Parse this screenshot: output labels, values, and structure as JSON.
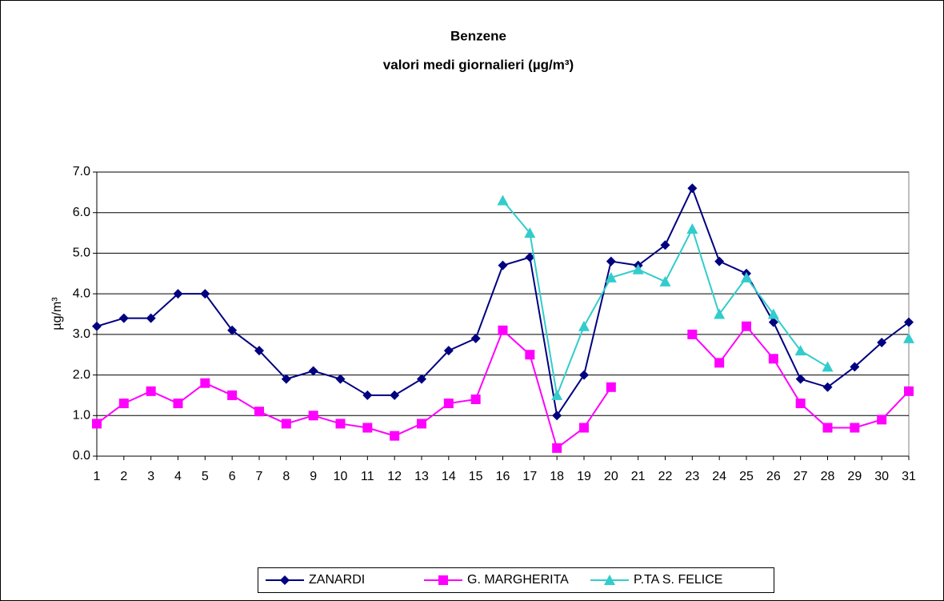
{
  "chart_data": {
    "type": "line",
    "title": "Benzene",
    "subtitle": "valori medi giornalieri (µg/m³)",
    "y_label": "µg/m³",
    "categories": [
      "1",
      "2",
      "3",
      "4",
      "5",
      "6",
      "7",
      "8",
      "9",
      "10",
      "11",
      "12",
      "13",
      "14",
      "15",
      "16",
      "17",
      "18",
      "19",
      "20",
      "21",
      "22",
      "23",
      "24",
      "25",
      "26",
      "27",
      "28",
      "29",
      "30",
      "31"
    ],
    "series": [
      {
        "name": "ZANARDI",
        "color": "#000080",
        "marker": "diamond",
        "values": [
          3.2,
          3.4,
          3.4,
          4.0,
          4.0,
          3.1,
          2.6,
          1.9,
          2.1,
          1.9,
          1.5,
          1.5,
          1.9,
          2.6,
          2.9,
          4.7,
          4.9,
          1.0,
          2.0,
          4.8,
          4.7,
          5.2,
          6.6,
          4.8,
          4.5,
          3.3,
          1.9,
          1.7,
          2.2,
          2.8,
          3.3
        ]
      },
      {
        "name": "G. MARGHERITA",
        "color": "#ff00ff",
        "marker": "square",
        "values": [
          0.8,
          1.3,
          1.6,
          1.3,
          1.8,
          1.5,
          1.1,
          0.8,
          1.0,
          0.8,
          0.7,
          0.5,
          0.8,
          1.3,
          1.4,
          3.1,
          2.5,
          0.2,
          0.7,
          1.7,
          null,
          null,
          3.0,
          2.3,
          3.2,
          2.4,
          1.3,
          0.7,
          0.7,
          0.9,
          1.6
        ]
      },
      {
        "name": "P.TA S. FELICE",
        "color": "#33cccc",
        "marker": "triangle",
        "values": [
          null,
          null,
          null,
          null,
          null,
          null,
          null,
          null,
          null,
          null,
          null,
          null,
          null,
          null,
          null,
          6.3,
          5.5,
          1.5,
          3.2,
          4.4,
          4.6,
          4.3,
          5.6,
          3.5,
          4.4,
          3.5,
          2.6,
          2.2,
          null,
          null,
          2.9
        ]
      }
    ],
    "ylim": [
      0,
      7
    ],
    "yticks": [
      {
        "value": 0,
        "label": "0.0"
      },
      {
        "value": 1,
        "label": "1.0"
      },
      {
        "value": 2,
        "label": "2.0"
      },
      {
        "value": 3,
        "label": "3.0"
      },
      {
        "value": 4,
        "label": "4.0"
      },
      {
        "value": 5,
        "label": "5.0"
      },
      {
        "value": 6,
        "label": "6.0"
      },
      {
        "value": 7,
        "label": "7.0"
      }
    ],
    "grid": true,
    "legend": "bottom"
  }
}
